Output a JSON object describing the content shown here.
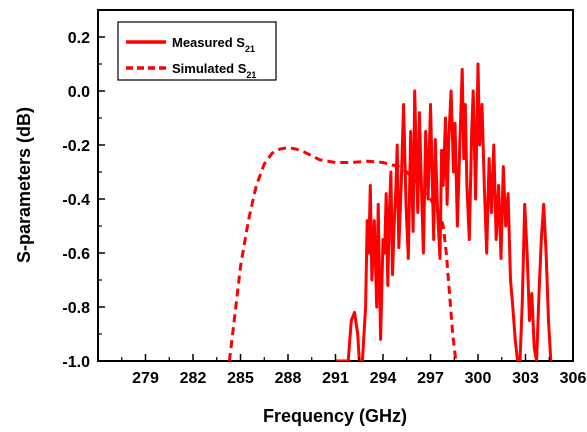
{
  "chart_data": {
    "type": "line",
    "xlabel": "Frequency (GHz)",
    "ylabel": "S-parameters (dB)",
    "xlim": [
      276,
      306
    ],
    "ylim": [
      -1.0,
      0.3
    ],
    "xticks": [
      279,
      282,
      285,
      288,
      291,
      294,
      297,
      300,
      303,
      306
    ],
    "xtick_labels": [
      "279",
      "282",
      "285",
      "288",
      "291",
      "294",
      "297",
      "300",
      "303",
      "306"
    ],
    "yticks": [
      -1.0,
      -0.8,
      -0.6,
      -0.4,
      -0.2,
      0.0,
      0.2
    ],
    "ytick_labels": [
      "-1.0",
      "-0.8",
      "-0.6",
      "-0.4",
      "-0.2",
      "0.0",
      "0.2"
    ],
    "legend_position": "top-left",
    "grid": false,
    "series": [
      {
        "name": "Measured S21",
        "label_main": "Measured S",
        "label_sub": "21",
        "style": "solid",
        "color": "#ff0000",
        "x": [
          291.0,
          291.3,
          291.6,
          291.8,
          292.0,
          292.2,
          292.4,
          292.5,
          292.7,
          292.9,
          293.0,
          293.1,
          293.2,
          293.3,
          293.45,
          293.6,
          293.7,
          293.85,
          294.0,
          294.1,
          294.2,
          294.3,
          294.4,
          294.5,
          294.6,
          294.7,
          294.8,
          294.9,
          295.0,
          295.15,
          295.3,
          295.45,
          295.6,
          295.75,
          295.9,
          296.0,
          296.1,
          296.2,
          296.3,
          296.4,
          296.55,
          296.7,
          296.85,
          297.0,
          297.1,
          297.2,
          297.3,
          297.45,
          297.6,
          297.7,
          297.8,
          297.95,
          298.05,
          298.15,
          298.3,
          298.45,
          298.55,
          298.7,
          298.85,
          299.0,
          299.1,
          299.2,
          299.3,
          299.45,
          299.6,
          299.7,
          299.85,
          300.0,
          300.1,
          300.25,
          300.4,
          300.55,
          300.7,
          300.85,
          301.0,
          301.15,
          301.3,
          301.45,
          301.6,
          301.75,
          301.9,
          302.05,
          302.2,
          302.35,
          302.5,
          302.65,
          302.8,
          302.95,
          303.1,
          303.25,
          303.4,
          303.55,
          303.7,
          303.85,
          304.0,
          304.15,
          304.3,
          304.45,
          304.6
        ],
        "y": [
          -1.0,
          -1.0,
          -1.0,
          -1.0,
          -0.85,
          -0.82,
          -0.9,
          -1.0,
          -1.0,
          -0.8,
          -0.48,
          -0.6,
          -0.35,
          -0.7,
          -0.48,
          -0.8,
          -0.42,
          -0.92,
          -0.55,
          -0.6,
          -0.38,
          -0.72,
          -0.45,
          -0.3,
          -0.68,
          -0.5,
          -0.38,
          -0.2,
          -0.58,
          -0.35,
          -0.05,
          -0.42,
          -0.62,
          -0.15,
          -0.52,
          0.0,
          -0.25,
          -0.45,
          -0.08,
          -0.3,
          -0.6,
          -0.15,
          -0.4,
          -0.05,
          -0.3,
          -0.55,
          -0.18,
          -0.45,
          -0.62,
          -0.22,
          -0.35,
          -0.1,
          -0.42,
          -0.18,
          0.0,
          -0.3,
          -0.12,
          -0.5,
          -0.2,
          0.08,
          -0.25,
          -0.05,
          -0.35,
          -0.55,
          -0.15,
          0.0,
          -0.4,
          0.1,
          -0.2,
          -0.05,
          -0.35,
          -0.6,
          -0.25,
          -0.45,
          -0.2,
          -0.55,
          -0.35,
          -0.62,
          -0.28,
          -0.5,
          -0.38,
          -0.7,
          -0.8,
          -0.92,
          -1.0,
          -1.0,
          -0.78,
          -0.42,
          -0.6,
          -0.85,
          -0.75,
          -0.95,
          -1.0,
          -0.75,
          -0.55,
          -0.42,
          -0.6,
          -0.85,
          -1.0
        ]
      },
      {
        "name": "Simulated S21",
        "label_main": "Simulated S",
        "label_sub": "21",
        "style": "dashed",
        "color": "#ff0000",
        "x": [
          284.3,
          284.6,
          285.0,
          285.5,
          286.0,
          286.5,
          287.0,
          287.5,
          288.0,
          288.5,
          289.0,
          289.5,
          290.0,
          291.0,
          292.0,
          293.0,
          294.0,
          295.0,
          295.5,
          296.0,
          296.5,
          297.0,
          297.3,
          297.6,
          297.8,
          298.0,
          298.2,
          298.4,
          298.6
        ],
        "y": [
          -1.0,
          -0.85,
          -0.65,
          -0.48,
          -0.35,
          -0.27,
          -0.23,
          -0.215,
          -0.21,
          -0.215,
          -0.225,
          -0.24,
          -0.255,
          -0.265,
          -0.265,
          -0.26,
          -0.265,
          -0.28,
          -0.3,
          -0.33,
          -0.37,
          -0.4,
          -0.43,
          -0.46,
          -0.5,
          -0.6,
          -0.75,
          -0.9,
          -1.0
        ]
      }
    ]
  }
}
